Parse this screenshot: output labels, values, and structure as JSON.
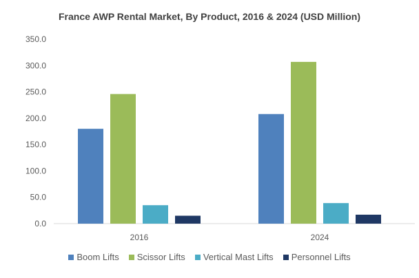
{
  "chart_data": {
    "type": "bar",
    "title": "France AWP Rental Market, By Product, 2016 & 2024 (USD Million)",
    "categories": [
      "2016",
      "2024"
    ],
    "series": [
      {
        "name": "Boom Lifts",
        "color": "#4f81bd",
        "values": [
          180,
          208
        ]
      },
      {
        "name": "Scissor Lifts",
        "color": "#9bbb59",
        "values": [
          246,
          307
        ]
      },
      {
        "name": "Vertical Mast Lifts",
        "color": "#4bacc6",
        "values": [
          35,
          39
        ]
      },
      {
        "name": "Personnel Lifts",
        "color": "#1f3864",
        "values": [
          15,
          17
        ]
      }
    ],
    "yticks": [
      "0.0",
      "50.0",
      "100.0",
      "150.0",
      "200.0",
      "250.0",
      "300.0",
      "350.0"
    ],
    "ylim": [
      0,
      350
    ],
    "xlabel": "",
    "ylabel": "",
    "grid": false,
    "legend_position": "bottom"
  }
}
